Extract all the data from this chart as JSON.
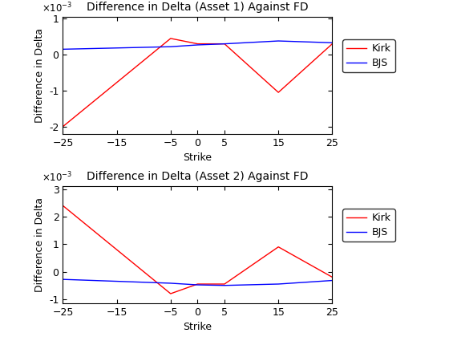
{
  "ax1": {
    "title": "Difference in Delta (Asset 1) Against FD",
    "xlabel": "Strike",
    "ylabel": "Difference in Delta",
    "x": [
      -25,
      -5,
      0,
      5,
      15,
      25
    ],
    "kirk_y": [
      -0.002,
      0.00045,
      0.0003,
      0.0003,
      -0.00105,
      0.0003
    ],
    "bjs_y": [
      0.00015,
      0.00022,
      0.00027,
      0.0003,
      0.00038,
      0.00033
    ],
    "ylim": [
      -0.0022,
      0.00105
    ],
    "yticks": [
      -0.002,
      -0.001,
      0.0,
      0.001
    ],
    "xlim": [
      -25,
      25
    ],
    "xticks": [
      -25,
      -15,
      -5,
      0,
      5,
      15,
      25
    ]
  },
  "ax2": {
    "title": "Difference in Delta (Asset 2) Against FD",
    "xlabel": "Strike",
    "ylabel": "Difference in Delta",
    "x": [
      -25,
      -5,
      0,
      5,
      15,
      25
    ],
    "kirk_y": [
      0.0024,
      -0.0008,
      -0.00045,
      -0.00045,
      0.0009,
      -0.0002
    ],
    "bjs_y": [
      -0.00028,
      -0.00042,
      -0.00048,
      -0.0005,
      -0.00045,
      -0.00032
    ],
    "ylim": [
      -0.00115,
      0.0031
    ],
    "yticks": [
      -0.001,
      0.0,
      0.001,
      0.002,
      0.003
    ],
    "xlim": [
      -25,
      25
    ],
    "xticks": [
      -25,
      -15,
      -5,
      0,
      5,
      15,
      25
    ]
  },
  "kirk_color": "#FF0000",
  "bjs_color": "#0000FF",
  "legend_labels": [
    "Kirk",
    "BJS"
  ],
  "bg_color": "#FFFFFF",
  "exponent_label": "×10⁻³"
}
